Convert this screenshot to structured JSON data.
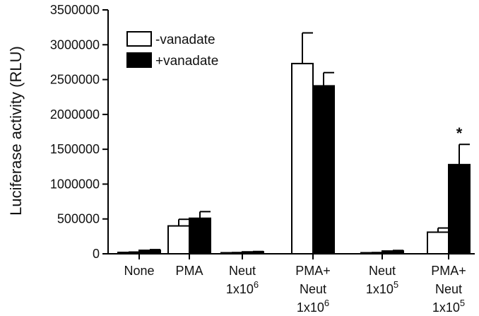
{
  "chart_data": {
    "type": "bar",
    "ylabel": "Luciferase activity (RLU)",
    "xlabel": "",
    "ylim": [
      0,
      3500000
    ],
    "yticks": [
      0,
      500000,
      1000000,
      1500000,
      2000000,
      2500000,
      3000000,
      3500000
    ],
    "categories": [
      {
        "lines": [
          "None"
        ],
        "sup": ""
      },
      {
        "lines": [
          "PMA"
        ],
        "sup": ""
      },
      {
        "lines": [
          "Neut",
          "1x10"
        ],
        "sup": "6"
      },
      {
        "lines": [
          "PMA+",
          "Neut",
          "1x10"
        ],
        "sup": "6"
      },
      {
        "lines": [
          "Neut",
          "1x10"
        ],
        "sup": "5"
      },
      {
        "lines": [
          "PMA+",
          "Neut",
          "1x10"
        ],
        "sup": "5"
      }
    ],
    "series": [
      {
        "name": "-vanadate",
        "fill": "#ffffff",
        "values": [
          20000,
          400000,
          15000,
          2730000,
          15000,
          310000
        ],
        "errors": [
          5000,
          95000,
          3000,
          440000,
          3000,
          60000
        ]
      },
      {
        "name": "+vanadate",
        "fill": "#000000",
        "values": [
          50000,
          510000,
          28000,
          2410000,
          40000,
          1280000
        ],
        "errors": [
          10000,
          95000,
          5000,
          190000,
          8000,
          290000
        ]
      }
    ],
    "annotations": [
      {
        "category_index": 5,
        "series_index": 1,
        "text": "*"
      }
    ],
    "legend_position": "top-left"
  }
}
